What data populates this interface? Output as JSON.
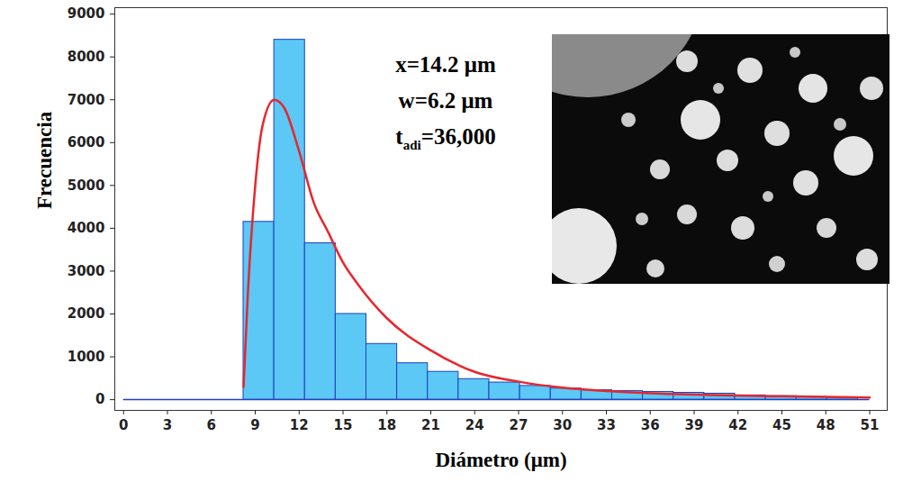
{
  "chart_data": {
    "type": "histogram",
    "x_label": "Diámetro (μm)",
    "y_label": "Frecuencia",
    "bins": [
      8.2,
      10.3,
      12.4,
      14.5,
      16.6,
      18.7,
      20.8,
      22.9,
      25.0,
      27.1,
      29.2,
      31.3,
      33.4,
      35.5,
      37.6,
      39.7,
      41.8,
      43.9,
      46.0,
      48.1,
      50.2
    ],
    "counts": [
      4150,
      8400,
      3650,
      2000,
      1300,
      850,
      650,
      480,
      400,
      320,
      260,
      220,
      200,
      180,
      160,
      140,
      100,
      80,
      60,
      50
    ],
    "color": "#5bc8f5",
    "fit": {
      "type": "line",
      "color": "#e8262b",
      "x": [
        8.2,
        8.5,
        9,
        9.5,
        10.3,
        11,
        12,
        13,
        14,
        15,
        16,
        18,
        21,
        24,
        27,
        30,
        33,
        36,
        40,
        45,
        51
      ],
      "values": [
        300,
        2500,
        5000,
        6400,
        7000,
        6800,
        5800,
        4600,
        3900,
        3200,
        2700,
        1900,
        1150,
        650,
        420,
        280,
        200,
        150,
        110,
        80,
        50
      ]
    },
    "annotations": [
      {
        "text": "x=14.2 μm"
      },
      {
        "text": "w=6.2 μm"
      },
      {
        "text": "t",
        "subscript": "adi",
        "suffix": "=36,000"
      }
    ],
    "xlim": [
      -0.6,
      52.2
    ],
    "xticks": [
      0,
      3,
      6,
      9,
      12,
      15,
      18,
      21,
      24,
      27,
      30,
      33,
      36,
      39,
      42,
      45,
      48,
      51
    ],
    "ylim": [
      -250,
      9150
    ],
    "yticks": [
      0,
      1000,
      2000,
      3000,
      4000,
      5000,
      6000,
      7000,
      8000,
      9000
    ],
    "grid": false
  }
}
